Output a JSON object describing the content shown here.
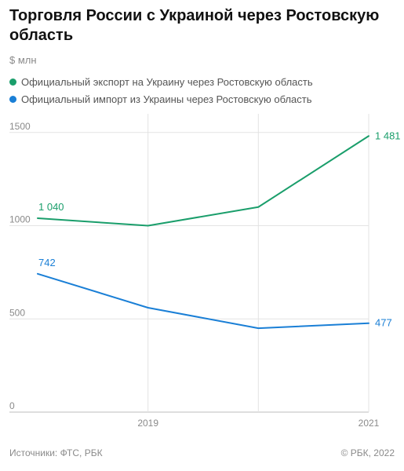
{
  "header": {
    "title": "Торговля России с Украиной через Ростовскую область",
    "unit": "$ млн"
  },
  "footer": {
    "source": "Источники: ФТС, РБК",
    "copyright": "© РБК, 2022"
  },
  "colors": {
    "export": "#1a9e6b",
    "import": "#1a7fd6",
    "grid": "#e3e3e3",
    "axis": "#bdbdbd"
  },
  "chart_data": {
    "type": "line",
    "x": [
      2018,
      2019,
      2020,
      2021
    ],
    "x_tick_labels": [
      {
        "x": 2019,
        "label": "2019"
      },
      {
        "x": 2021,
        "label": "2021"
      }
    ],
    "ylim": [
      0,
      1600
    ],
    "y_ticks": [
      0,
      500,
      1000,
      1500
    ],
    "y_tick_labels": [
      "0",
      "500",
      "1000",
      "1500"
    ],
    "grid": true,
    "legend_position": "top-left",
    "series": [
      {
        "name": "Официальный экспорт на Украину через Ростовскую область",
        "color": "#1a9e6b",
        "values": [
          1040,
          1000,
          1100,
          1481
        ],
        "labels": [
          {
            "index": 0,
            "text": "1 040"
          },
          {
            "index": 3,
            "text": "1 481"
          }
        ]
      },
      {
        "name": "Официальный импорт из Украины через Ростовскую область",
        "color": "#1a7fd6",
        "values": [
          742,
          560,
          450,
          477
        ],
        "labels": [
          {
            "index": 0,
            "text": "742"
          },
          {
            "index": 3,
            "text": "477"
          }
        ]
      }
    ]
  }
}
